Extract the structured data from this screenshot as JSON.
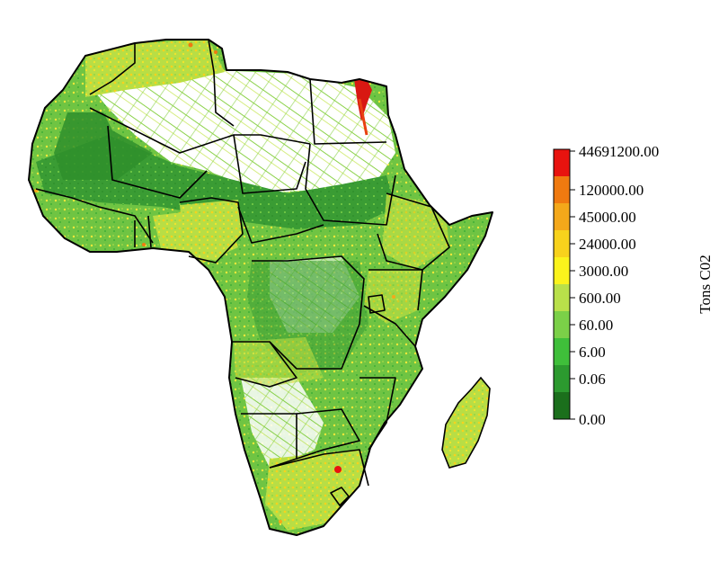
{
  "legend": {
    "title": "Tons C02",
    "classes": [
      {
        "label": "44691200.00",
        "color": "#e8130f"
      },
      {
        "label": "120000.00",
        "color": "#f07a10"
      },
      {
        "label": "45000.00",
        "color": "#f4a81a"
      },
      {
        "label": "24000.00",
        "color": "#f8d21c"
      },
      {
        "label": "3000.00",
        "color": "#fbf31c"
      },
      {
        "label": "600.00",
        "color": "#b9e04a"
      },
      {
        "label": "60.00",
        "color": "#7bd048"
      },
      {
        "label": "6.00",
        "color": "#3fbf3a"
      },
      {
        "label": "0.06",
        "color": "#2c9a2f"
      },
      {
        "label": "0.00",
        "color": "#1b6f1c"
      }
    ]
  },
  "map": {
    "region": "Africa",
    "land_base_color": "#9ed84a",
    "border_color": "#000000",
    "sparse_color": "#ffffff"
  }
}
